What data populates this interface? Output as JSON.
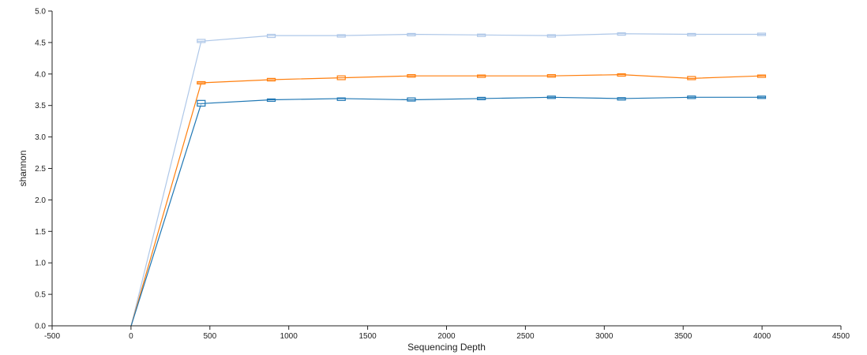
{
  "chart_data": {
    "type": "line",
    "title": "",
    "xlabel": "Sequencing Depth",
    "ylabel": "shannon",
    "xlim": [
      -500,
      4500
    ],
    "ylim": [
      0,
      5
    ],
    "xticks": [
      -500,
      0,
      500,
      1000,
      1500,
      2000,
      2500,
      3000,
      3500,
      4000,
      4500
    ],
    "yticks": [
      0.0,
      0.5,
      1.0,
      1.5,
      2.0,
      2.5,
      3.0,
      3.5,
      4.0,
      4.5,
      5.0
    ],
    "grid": false,
    "legend": "none",
    "x": [
      1,
      445,
      889,
      1333,
      1777,
      2221,
      2665,
      3109,
      3553,
      3997
    ],
    "series": [
      {
        "color": "#aec7e8",
        "values": [
          0,
          4.52,
          4.61,
          4.61,
          4.63,
          4.62,
          4.61,
          4.64,
          4.63,
          4.63
        ],
        "box_range": [
          [
            0,
            0
          ],
          [
            4.5,
            4.55
          ],
          [
            4.58,
            4.63
          ],
          [
            4.59,
            4.62
          ],
          [
            4.61,
            4.64
          ],
          [
            4.6,
            4.63
          ],
          [
            4.59,
            4.62
          ],
          [
            4.63,
            4.64
          ],
          [
            4.61,
            4.64
          ],
          [
            4.62,
            4.64
          ]
        ]
      },
      {
        "color": "#ff7f0e",
        "values": [
          0,
          3.86,
          3.91,
          3.94,
          3.97,
          3.97,
          3.97,
          3.99,
          3.93,
          3.97
        ],
        "box_range": [
          [
            0,
            0
          ],
          [
            3.85,
            3.87
          ],
          [
            3.89,
            3.93
          ],
          [
            3.91,
            3.97
          ],
          [
            3.95,
            3.99
          ],
          [
            3.95,
            3.98
          ],
          [
            3.95,
            3.99
          ],
          [
            3.98,
            3.99
          ],
          [
            3.91,
            3.96
          ],
          [
            3.96,
            3.97
          ]
        ]
      },
      {
        "color": "#1f77b4",
        "values": [
          0,
          3.53,
          3.59,
          3.61,
          3.59,
          3.61,
          3.63,
          3.61,
          3.63,
          3.63
        ],
        "box_range": [
          [
            0,
            0
          ],
          [
            3.49,
            3.58
          ],
          [
            3.58,
            3.59
          ],
          [
            3.58,
            3.62
          ],
          [
            3.57,
            3.62
          ],
          [
            3.6,
            3.62
          ],
          [
            3.62,
            3.64
          ],
          [
            3.59,
            3.62
          ],
          [
            3.61,
            3.65
          ],
          [
            3.62,
            3.64
          ]
        ]
      }
    ]
  }
}
